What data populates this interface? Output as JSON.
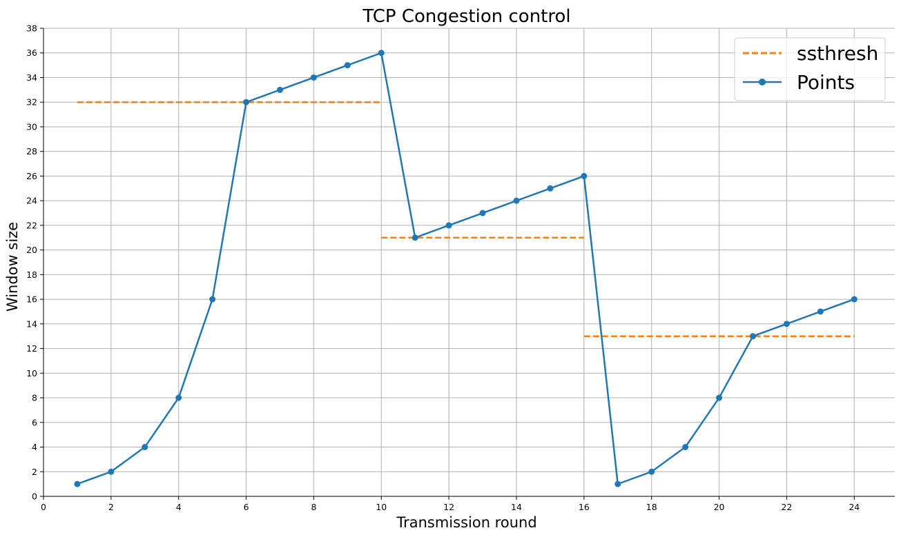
{
  "chart_data": {
    "type": "line",
    "title": "TCP Congestion control",
    "xlabel": "Transmission round",
    "ylabel": "Window size",
    "xlim": [
      0,
      25.2
    ],
    "ylim": [
      0,
      38
    ],
    "xticks": [
      0,
      2,
      4,
      6,
      8,
      10,
      12,
      14,
      16,
      18,
      20,
      22,
      24
    ],
    "yticks": [
      0,
      2,
      4,
      6,
      8,
      10,
      12,
      14,
      16,
      18,
      20,
      22,
      24,
      26,
      28,
      30,
      32,
      34,
      36,
      38
    ],
    "grid": true,
    "legend_position": "top-right",
    "series": [
      {
        "name": "ssthresh",
        "style": "dashed",
        "color": "#ff7f0e",
        "segments": [
          {
            "x": [
              1,
              10
            ],
            "y": [
              32,
              32
            ]
          },
          {
            "x": [
              10,
              16
            ],
            "y": [
              21,
              21
            ]
          },
          {
            "x": [
              16,
              24
            ],
            "y": [
              13,
              13
            ]
          }
        ]
      },
      {
        "name": "Points",
        "style": "solid-markers",
        "color": "#1f77b4",
        "x": [
          1,
          2,
          3,
          4,
          5,
          6,
          7,
          8,
          9,
          10,
          11,
          12,
          13,
          14,
          15,
          16,
          17,
          18,
          19,
          20,
          21,
          22,
          23,
          24
        ],
        "y": [
          1,
          2,
          4,
          8,
          16,
          32,
          33,
          34,
          35,
          36,
          21,
          22,
          23,
          24,
          25,
          26,
          1,
          2,
          4,
          8,
          13,
          14,
          15,
          16
        ]
      }
    ]
  }
}
